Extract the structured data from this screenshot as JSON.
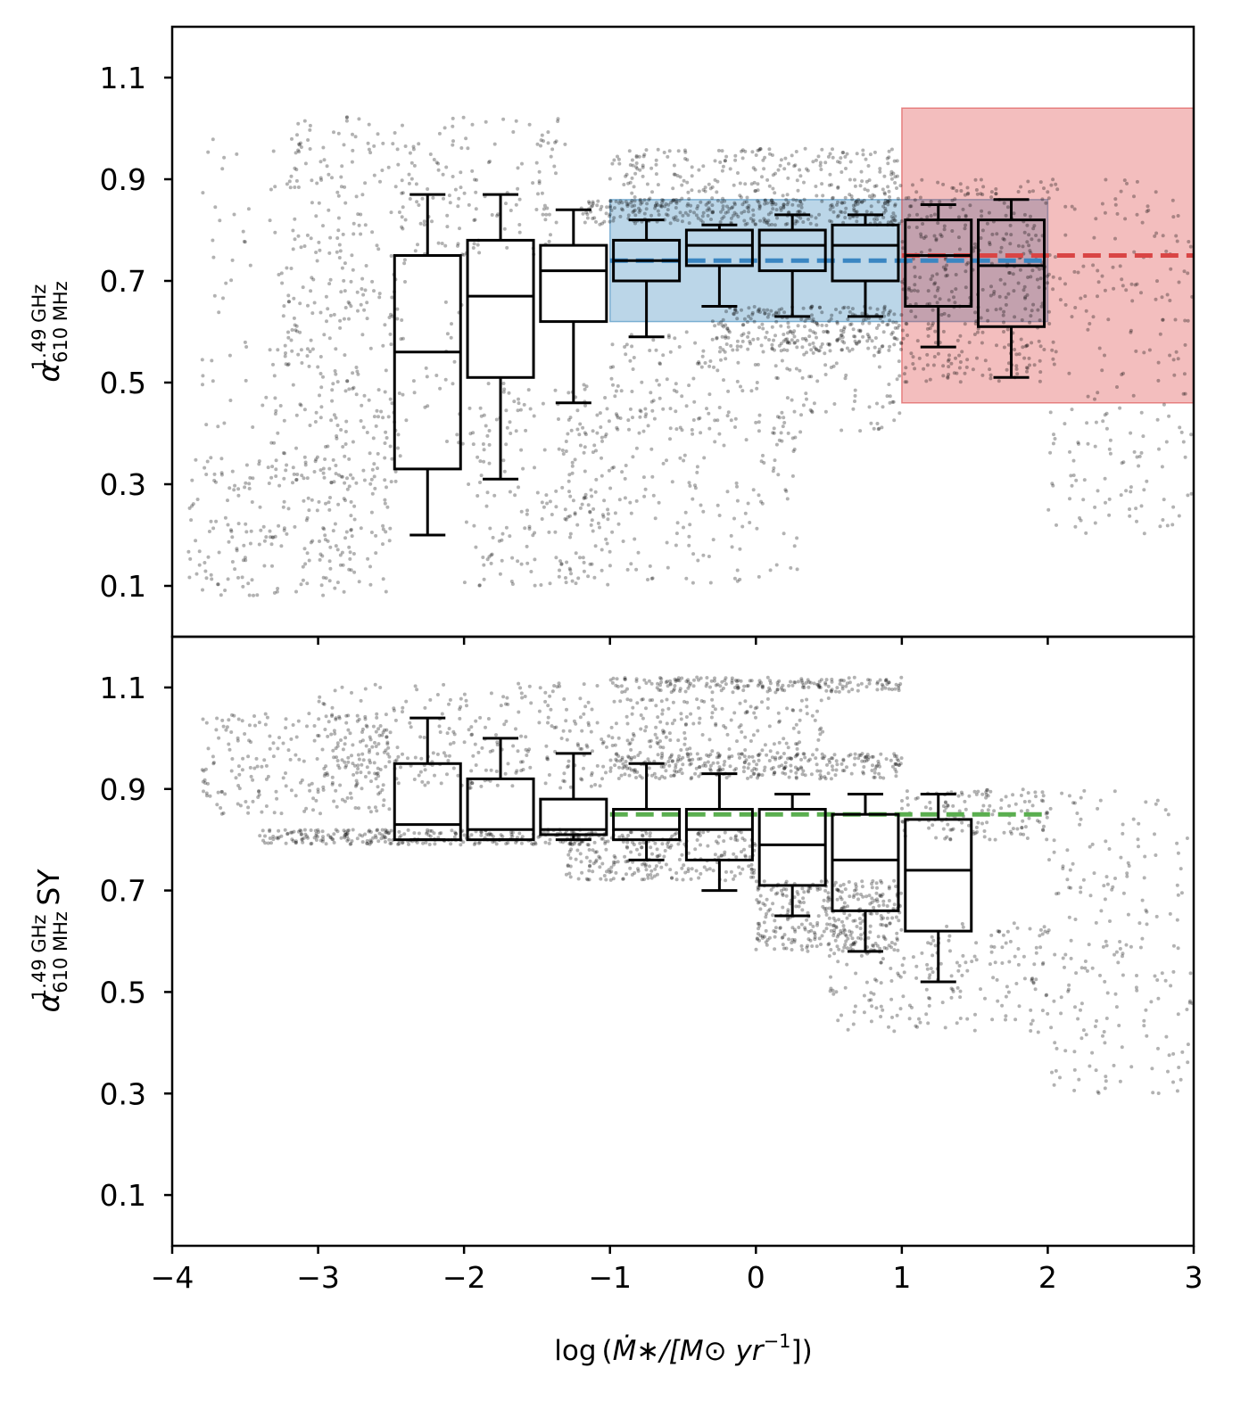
{
  "chart_data": [
    {
      "panel": "top",
      "type": "box",
      "ylabel": {
        "symbol": "α",
        "sup": "1.49 GHz",
        "sub": "610 MHz",
        "suffix": ""
      },
      "xlim": [
        -4,
        3
      ],
      "ylim": [
        0,
        1.2
      ],
      "yticks": [
        0.1,
        0.3,
        0.5,
        0.7,
        0.9,
        1.1
      ],
      "ytick_labels": [
        "0.1",
        "0.3",
        "0.5",
        "0.7",
        "0.9",
        "1.1"
      ],
      "xticks": [
        -3,
        -2,
        -1,
        0,
        1,
        2
      ],
      "x_ticklabels_shown": false,
      "boxes": [
        {
          "x": -2.25,
          "whislo": 0.2,
          "q1": 0.33,
          "med": 0.56,
          "q3": 0.75,
          "whishi": 0.87
        },
        {
          "x": -1.75,
          "whislo": 0.31,
          "q1": 0.51,
          "med": 0.67,
          "q3": 0.78,
          "whishi": 0.87
        },
        {
          "x": -1.25,
          "whislo": 0.46,
          "q1": 0.62,
          "med": 0.72,
          "q3": 0.77,
          "whishi": 0.84
        },
        {
          "x": -0.75,
          "whislo": 0.59,
          "q1": 0.7,
          "med": 0.74,
          "q3": 0.78,
          "whishi": 0.82
        },
        {
          "x": -0.25,
          "whislo": 0.65,
          "q1": 0.73,
          "med": 0.77,
          "q3": 0.8,
          "whishi": 0.81
        },
        {
          "x": 0.25,
          "whislo": 0.63,
          "q1": 0.72,
          "med": 0.77,
          "q3": 0.8,
          "whishi": 0.83
        },
        {
          "x": 0.75,
          "whislo": 0.63,
          "q1": 0.7,
          "med": 0.77,
          "q3": 0.81,
          "whishi": 0.83
        },
        {
          "x": 1.25,
          "whislo": 0.57,
          "q1": 0.65,
          "med": 0.75,
          "q3": 0.82,
          "whishi": 0.85
        },
        {
          "x": 1.75,
          "whislo": 0.51,
          "q1": 0.61,
          "med": 0.73,
          "q3": 0.82,
          "whishi": 0.86
        }
      ],
      "bands": [
        {
          "name": "blue-region",
          "x": [
            -1,
            2
          ],
          "y": [
            0.62,
            0.86
          ],
          "color": "#1f77b4",
          "opacity": 0.3
        },
        {
          "name": "red-region",
          "x": [
            1,
            3
          ],
          "y": [
            0.46,
            1.04
          ],
          "color": "#d62728",
          "opacity": 0.3
        }
      ],
      "dashed_lines": [
        {
          "name": "blue-median-line",
          "x": [
            -1,
            2
          ],
          "y": 0.74,
          "color": "#3a86c2"
        },
        {
          "name": "red-median-line",
          "x": [
            1,
            3
          ],
          "y": 0.75,
          "color": "#d94545"
        }
      ],
      "scatter": {
        "description": "~3000 grey points, alpha 0.3",
        "clusters": [
          {
            "x": [
              -3.9,
              -2.5
            ],
            "y": [
              0.08,
              0.35
            ],
            "n": 240
          },
          {
            "x": [
              -3.3,
              -2.4
            ],
            "y": [
              0.3,
              0.75
            ],
            "n": 180
          },
          {
            "x": [
              -3.2,
              -1.3
            ],
            "y": [
              0.75,
              1.03
            ],
            "n": 220
          },
          {
            "x": [
              -2.0,
              -1.0
            ],
            "y": [
              0.1,
              0.5
            ],
            "n": 200
          },
          {
            "x": [
              -1.3,
              0.3
            ],
            "y": [
              0.1,
              0.45
            ],
            "n": 180
          },
          {
            "x": [
              -1.0,
              1.0
            ],
            "y": [
              0.85,
              0.96
            ],
            "n": 260
          },
          {
            "x": [
              -1.2,
              1.0
            ],
            "y": [
              0.81,
              0.86
            ],
            "n": 320
          },
          {
            "x": [
              -0.3,
              1.0
            ],
            "y": [
              0.56,
              0.65
            ],
            "n": 260
          },
          {
            "x": [
              -1.0,
              1.0
            ],
            "y": [
              0.4,
              0.6
            ],
            "n": 200
          },
          {
            "x": [
              1.0,
              2.0
            ],
            "y": [
              0.5,
              0.9
            ],
            "n": 380
          },
          {
            "x": [
              2.0,
              3.0
            ],
            "y": [
              0.2,
              0.9
            ],
            "n": 220
          },
          {
            "x": [
              -3.8,
              -2.0
            ],
            "y": [
              0.35,
              0.98
            ],
            "n": 160
          }
        ]
      }
    },
    {
      "panel": "bottom",
      "type": "box",
      "ylabel": {
        "symbol": "α",
        "sup": "1.49 GHz",
        "sub": "610 MHz",
        "suffix": "SY"
      },
      "xlabel": {
        "prefix": "log",
        "body": "Ṁ∗/[M⊙ yr",
        "exp": "−1",
        "close": "])"
      },
      "xlim": [
        -4,
        3
      ],
      "ylim": [
        0,
        1.2
      ],
      "yticks": [
        0.1,
        0.3,
        0.5,
        0.7,
        0.9,
        1.1
      ],
      "ytick_labels": [
        "0.1",
        "0.3",
        "0.5",
        "0.7",
        "0.9",
        "1.1"
      ],
      "xticks": [
        -4,
        -3,
        -2,
        -1,
        0,
        1,
        2,
        3
      ],
      "xtick_labels": [
        "−4",
        "−3",
        "−2",
        "−1",
        "0",
        "1",
        "2",
        "3"
      ],
      "boxes": [
        {
          "x": -2.25,
          "whislo": 0.8,
          "q1": 0.8,
          "med": 0.83,
          "q3": 0.95,
          "whishi": 1.04
        },
        {
          "x": -1.75,
          "whislo": 0.8,
          "q1": 0.8,
          "med": 0.82,
          "q3": 0.92,
          "whishi": 1.0
        },
        {
          "x": -1.25,
          "whislo": 0.8,
          "q1": 0.81,
          "med": 0.82,
          "q3": 0.88,
          "whishi": 0.97
        },
        {
          "x": -0.75,
          "whislo": 0.76,
          "q1": 0.8,
          "med": 0.82,
          "q3": 0.86,
          "whishi": 0.95
        },
        {
          "x": -0.25,
          "whislo": 0.7,
          "q1": 0.76,
          "med": 0.82,
          "q3": 0.86,
          "whishi": 0.93
        },
        {
          "x": 0.25,
          "whislo": 0.65,
          "q1": 0.71,
          "med": 0.79,
          "q3": 0.86,
          "whishi": 0.89
        },
        {
          "x": 0.75,
          "whislo": 0.58,
          "q1": 0.66,
          "med": 0.76,
          "q3": 0.85,
          "whishi": 0.89
        },
        {
          "x": 1.25,
          "whislo": 0.52,
          "q1": 0.62,
          "med": 0.74,
          "q3": 0.84,
          "whishi": 0.89
        }
      ],
      "dashed_lines": [
        {
          "name": "green-median-line",
          "x": [
            -1,
            2
          ],
          "y": 0.85,
          "color": "#5aae4f"
        }
      ],
      "scatter": {
        "description": "~3000 grey points, alpha 0.3",
        "clusters": [
          {
            "x": [
              -3.8,
              -2.5
            ],
            "y": [
              0.85,
              1.05
            ],
            "n": 220
          },
          {
            "x": [
              -3.4,
              -1.0
            ],
            "y": [
              0.79,
              0.82
            ],
            "n": 280
          },
          {
            "x": [
              -3.0,
              -1.0
            ],
            "y": [
              0.9,
              1.11
            ],
            "n": 300
          },
          {
            "x": [
              -1.0,
              1.0
            ],
            "y": [
              1.09,
              1.12
            ],
            "n": 200
          },
          {
            "x": [
              -1.0,
              1.0
            ],
            "y": [
              0.92,
              0.97
            ],
            "n": 300
          },
          {
            "x": [
              -1.3,
              0.0
            ],
            "y": [
              0.72,
              0.82
            ],
            "n": 260
          },
          {
            "x": [
              0.0,
              1.0
            ],
            "y": [
              0.58,
              0.72
            ],
            "n": 320
          },
          {
            "x": [
              0.5,
              2.0
            ],
            "y": [
              0.42,
              0.65
            ],
            "n": 220
          },
          {
            "x": [
              2.0,
              3.0
            ],
            "y": [
              0.3,
              0.9
            ],
            "n": 200
          },
          {
            "x": [
              1.0,
              2.0
            ],
            "y": [
              0.8,
              0.9
            ],
            "n": 140
          },
          {
            "x": [
              -1.0,
              0.5
            ],
            "y": [
              0.96,
              1.08
            ],
            "n": 180
          }
        ]
      }
    }
  ]
}
